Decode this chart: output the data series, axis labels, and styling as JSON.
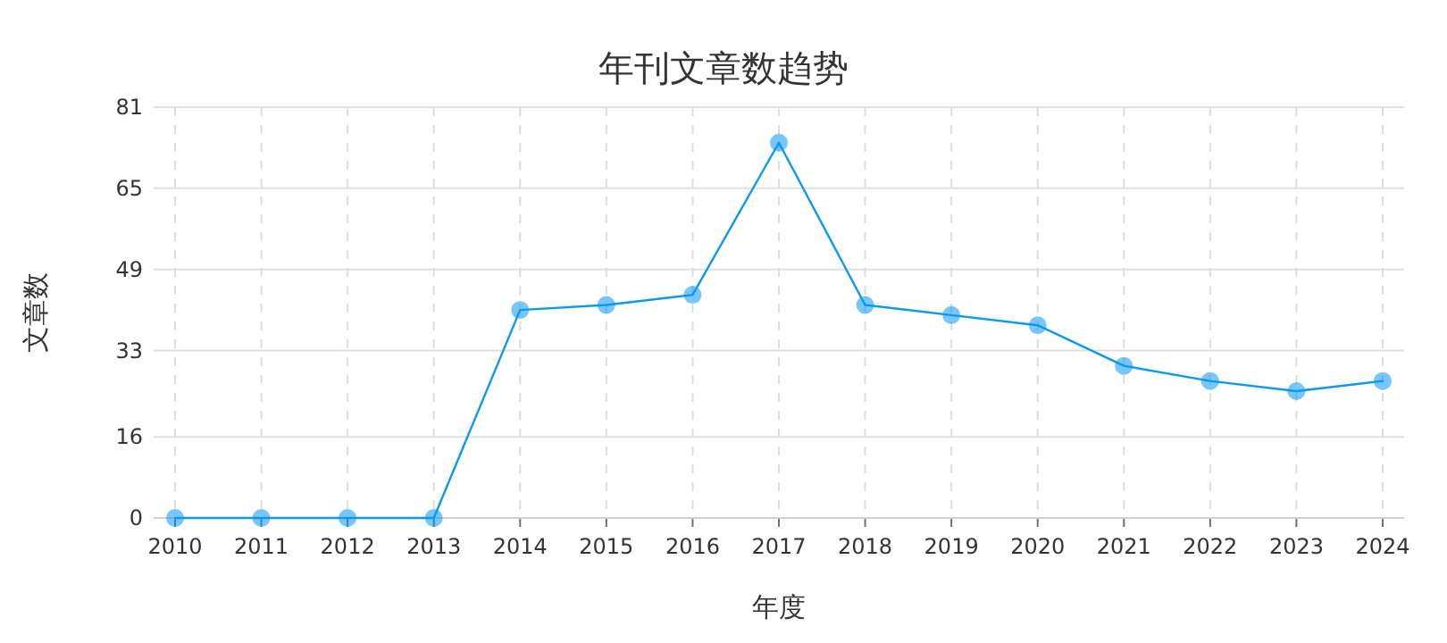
{
  "chart_data": {
    "type": "line",
    "title": "年刊文章数趋势",
    "xlabel": "年度",
    "ylabel": "文章数",
    "categories": [
      "2010",
      "2011",
      "2012",
      "2013",
      "2014",
      "2015",
      "2016",
      "2017",
      "2018",
      "2019",
      "2020",
      "2021",
      "2022",
      "2023",
      "2024"
    ],
    "series": [
      {
        "color": "#0a98f0",
        "values": [
          0,
          0,
          0,
          0,
          41,
          42,
          44,
          74,
          42,
          40,
          38,
          30,
          27,
          25,
          27
        ]
      }
    ],
    "ylim": [
      0,
      81
    ],
    "yticks": [
      0,
      16,
      33,
      49,
      65,
      81
    ],
    "grid": true,
    "marker": "circle",
    "line_style": "solid"
  }
}
